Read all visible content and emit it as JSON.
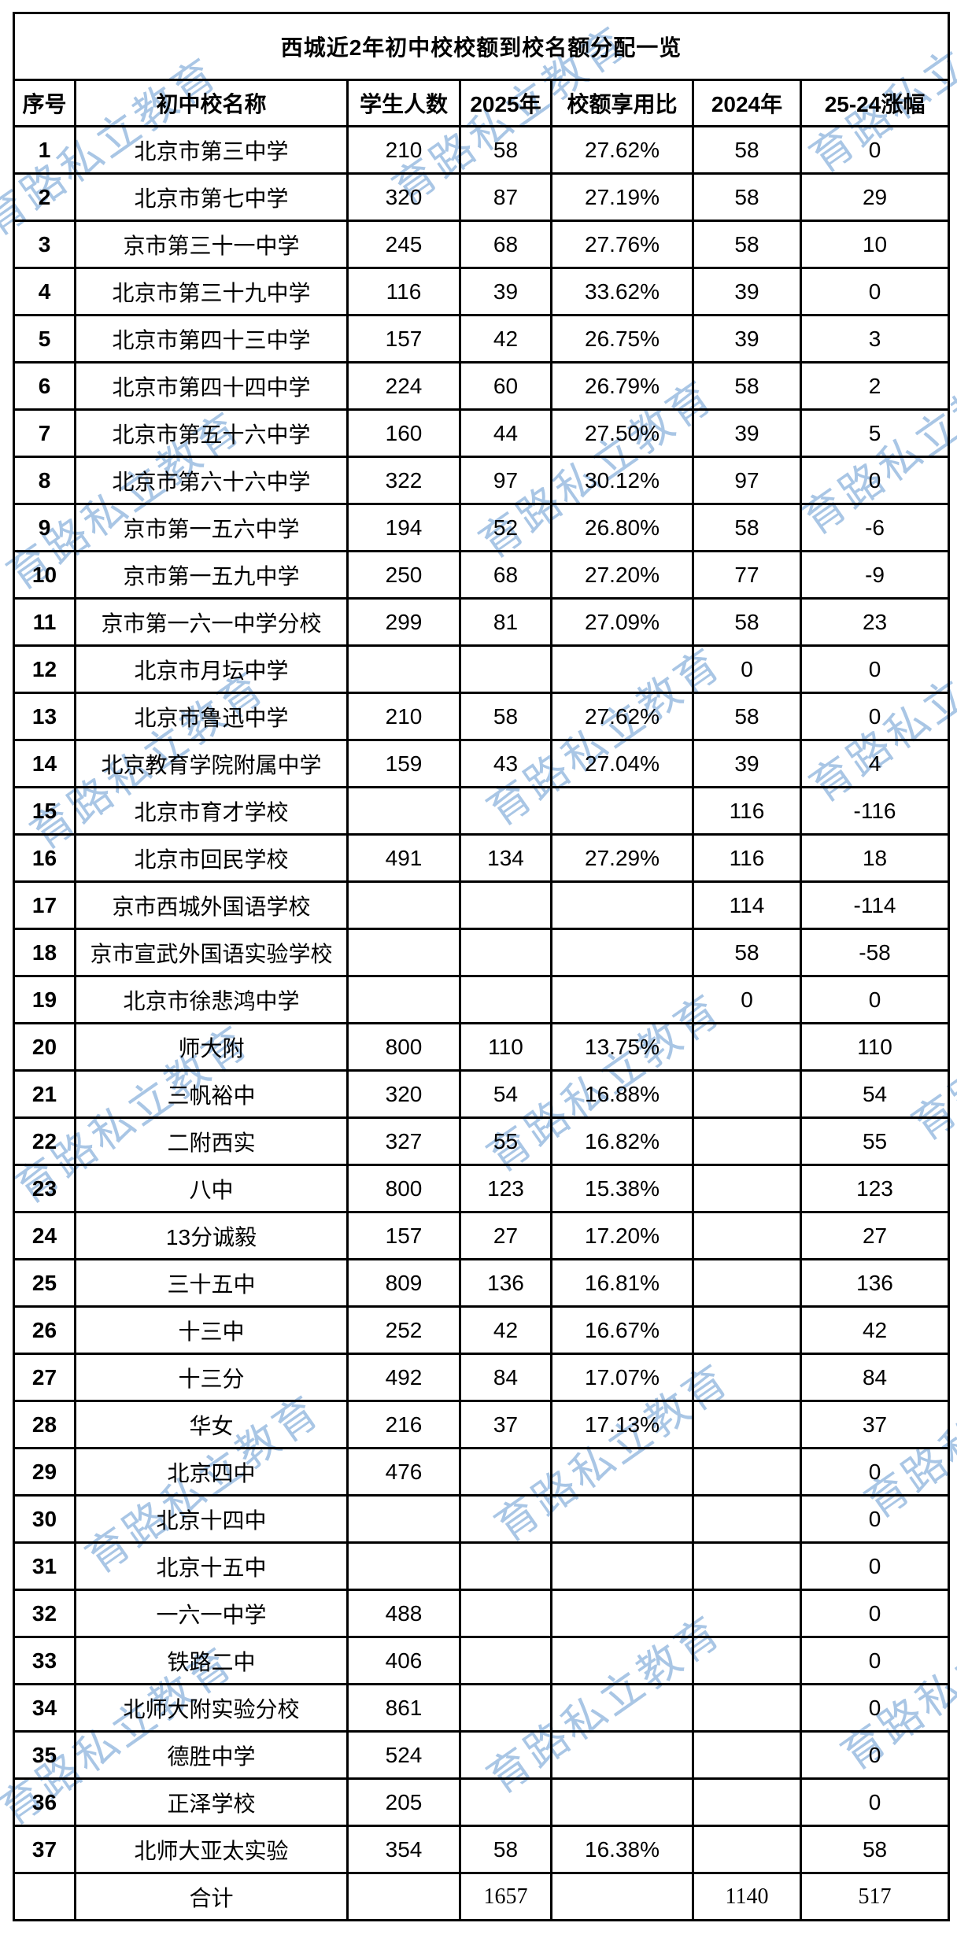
{
  "watermark": {
    "text": "育路私立教育",
    "color": "#a9c6e5"
  },
  "table": {
    "title": "西城近2年初中校校额到校名额分配一览",
    "headers": [
      "序号",
      "初中校名称",
      "学生人数",
      "2025年",
      "校额享用比",
      "2024年",
      "25-24涨幅"
    ],
    "accent_red": "#cc1111",
    "rows": [
      [
        "1",
        "北京市第三中学",
        "210",
        "58",
        "27.62%",
        "58",
        "0"
      ],
      [
        "2",
        "北京市第七中学",
        "320",
        "87",
        "27.19%",
        "58",
        "29"
      ],
      [
        "3",
        "京市第三十一中学",
        "245",
        "68",
        "27.76%",
        "58",
        "10"
      ],
      [
        "4",
        "北京市第三十九中学",
        "116",
        "39",
        "33.62%",
        "39",
        "0"
      ],
      [
        "5",
        "北京市第四十三中学",
        "157",
        "42",
        "26.75%",
        "39",
        "3"
      ],
      [
        "6",
        "北京市第四十四中学",
        "224",
        "60",
        "26.79%",
        "58",
        "2"
      ],
      [
        "7",
        "北京市第五十六中学",
        "160",
        "44",
        "27.50%",
        "39",
        "5"
      ],
      [
        "8",
        "北京市第六十六中学",
        "322",
        "97",
        "30.12%",
        "97",
        "0"
      ],
      [
        "9",
        "京市第一五六中学",
        "194",
        "52",
        "26.80%",
        "58",
        "-6"
      ],
      [
        "10",
        "京市第一五九中学",
        "250",
        "68",
        "27.20%",
        "77",
        "-9"
      ],
      [
        "11",
        "京市第一六一中学分校",
        "299",
        "81",
        "27.09%",
        "58",
        "23"
      ],
      [
        "12",
        "北京市月坛中学",
        "",
        "",
        "",
        "0",
        "0"
      ],
      [
        "13",
        "北京市鲁迅中学",
        "210",
        "58",
        "27.62%",
        "58",
        "0"
      ],
      [
        "14",
        "北京教育学院附属中学",
        "159",
        "43",
        "27.04%",
        "39",
        "4"
      ],
      [
        "15",
        "北京市育才学校",
        "",
        "",
        "",
        "116",
        "-116"
      ],
      [
        "16",
        "北京市回民学校",
        "491",
        "134",
        "27.29%",
        "116",
        "18"
      ],
      [
        "17",
        "京市西城外国语学校",
        "",
        "",
        "",
        "114",
        "-114"
      ],
      [
        "18",
        "京市宣武外国语实验学校",
        "",
        "",
        "",
        "58",
        "-58"
      ],
      [
        "19",
        "北京市徐悲鸿中学",
        "",
        "",
        "",
        "0",
        "0"
      ],
      [
        "20",
        "师大附",
        "800",
        "110",
        "13.75%",
        "",
        "110"
      ],
      [
        "21",
        "三帆裕中",
        "320",
        "54",
        "16.88%",
        "",
        "54"
      ],
      [
        "22",
        "二附西实",
        "327",
        "55",
        "16.82%",
        "",
        "55"
      ],
      [
        "23",
        "八中",
        "800",
        "123",
        "15.38%",
        "",
        "123"
      ],
      [
        "24",
        "13分诚毅",
        "157",
        "27",
        "17.20%",
        "",
        "27"
      ],
      [
        "25",
        "三十五中",
        "809",
        "136",
        "16.81%",
        "",
        "136"
      ],
      [
        "26",
        "十三中",
        "252",
        "42",
        "16.67%",
        "",
        "42"
      ],
      [
        "27",
        "十三分",
        "492",
        "84",
        "17.07%",
        "",
        "84"
      ],
      [
        "28",
        "华女",
        "216",
        "37",
        "17.13%",
        "",
        "37"
      ],
      [
        "29",
        "北京四中",
        "476",
        "",
        "",
        "",
        "0"
      ],
      [
        "30",
        "北京十四中",
        "",
        "",
        "",
        "",
        "0"
      ],
      [
        "31",
        "北京十五中",
        "",
        "",
        "",
        "",
        "0"
      ],
      [
        "32",
        "一六一中学",
        "488",
        "",
        "",
        "",
        "0"
      ],
      [
        "33",
        "铁路二中",
        "406",
        "",
        "",
        "",
        "0"
      ],
      [
        "34",
        "北师大附实验分校",
        "861",
        "",
        "",
        "",
        "0"
      ],
      [
        "35",
        "德胜中学",
        "524",
        "",
        "",
        "",
        "0"
      ],
      [
        "36",
        "正泽学校",
        "205",
        "",
        "",
        "",
        "0"
      ],
      [
        "37",
        "北师大亚太实验",
        "354",
        "58",
        "16.38%",
        "",
        "58"
      ]
    ],
    "total_row": [
      "",
      "合计",
      "",
      "1657",
      "",
      "1140",
      "517"
    ]
  }
}
